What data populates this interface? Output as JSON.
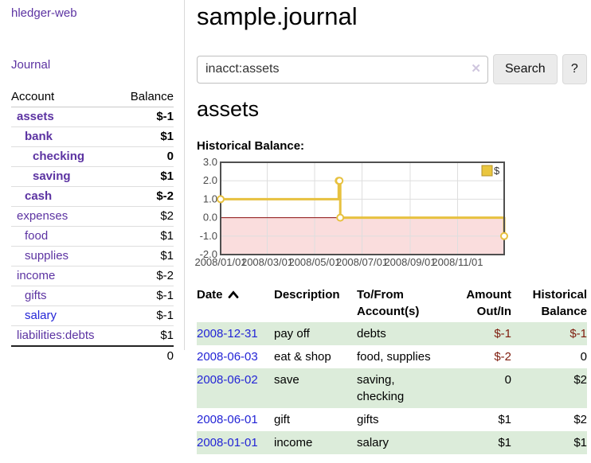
{
  "app_title": "hledger-web",
  "sidebar": {
    "journal_link": "Journal",
    "accounts": {
      "col_account": "Account",
      "col_balance": "Balance",
      "rows": [
        {
          "name": "assets",
          "balance": "$-1",
          "level": 1,
          "current": true
        },
        {
          "name": "bank",
          "balance": "$1",
          "level": 2,
          "current": true
        },
        {
          "name": "checking",
          "balance": "0",
          "level": 3,
          "current": true
        },
        {
          "name": "saving",
          "balance": "$1",
          "level": 3,
          "current": true
        },
        {
          "name": "cash",
          "balance": "$-2",
          "level": 2,
          "current": true
        },
        {
          "name": "expenses",
          "balance": "$2",
          "level": 1,
          "current": false
        },
        {
          "name": "food",
          "balance": "$1",
          "level": 2,
          "current": false
        },
        {
          "name": "supplies",
          "balance": "$1",
          "level": 2,
          "current": false
        },
        {
          "name": "income",
          "balance": "$-2",
          "level": 1,
          "current": false
        },
        {
          "name": "gifts",
          "balance": "$-1",
          "level": 2,
          "current": false
        },
        {
          "name": "salary",
          "balance": "$-1",
          "level": 2,
          "current": false,
          "blue": true
        },
        {
          "name": "liabilities:debts",
          "balance": "$1",
          "level": 1,
          "current": false
        }
      ],
      "total": "0"
    }
  },
  "header": {
    "title": "sample.journal"
  },
  "search": {
    "value": "inacct:assets",
    "button": "Search",
    "help_button": "?"
  },
  "icons": {
    "clear_search": "✕",
    "date_sort": "chevron-up"
  },
  "account_page": {
    "heading": "assets",
    "chart_label": "Historical Balance:"
  },
  "chart_data": {
    "type": "line",
    "title": "Historical Balance:",
    "ylim": [
      -2,
      3
    ],
    "y_ticks": [
      "3.0",
      "2.0",
      "1.0",
      "0.0",
      "-1.0",
      "-2.0"
    ],
    "x_range": [
      "2008-01-01",
      "2008-12-31"
    ],
    "x_ticks": [
      {
        "label": "2008/01/01",
        "date": "2008-01-01"
      },
      {
        "label": "2008/03/01",
        "date": "2008-03-01"
      },
      {
        "label": "2008/05/01",
        "date": "2008-05-01"
      },
      {
        "label": "2008/07/01",
        "date": "2008-07-01"
      },
      {
        "label": "2008/09/01",
        "date": "2008-09-01"
      },
      {
        "label": "2008/11/01",
        "date": "2008-11-01"
      }
    ],
    "series": [
      {
        "name": "$",
        "color": "#e7c13f",
        "points": [
          [
            "2008-01-01",
            1
          ],
          [
            "2008-06-01",
            2
          ],
          [
            "2008-06-02",
            2
          ],
          [
            "2008-06-03",
            0
          ],
          [
            "2008-12-31",
            -1
          ]
        ]
      }
    ],
    "legend": [
      {
        "label": "$",
        "color": "#eac63e"
      }
    ],
    "legend_position": "top-right",
    "grid": true,
    "negative_region_color": "#fadddd",
    "zero_line_color": "#8e1010",
    "grid_color": "#dedede",
    "border_color": "#4f4f4f",
    "axis_text_color": "#4a4a4a"
  },
  "register": {
    "headers": {
      "date": "Date",
      "description": "Description",
      "accounts": "To/From Account(s)",
      "amount": "Amount Out/In",
      "balance": "Historical Balance"
    },
    "rows": [
      {
        "date": "2008-12-31",
        "description": "pay off",
        "accounts": "debts",
        "amount": "$-1",
        "balance": "$-1"
      },
      {
        "date": "2008-06-03",
        "description": "eat & shop",
        "accounts": "food, supplies",
        "amount": "$-2",
        "balance": "0"
      },
      {
        "date": "2008-06-02",
        "description": "save",
        "accounts": "saving, checking",
        "amount": "0",
        "balance": "$2"
      },
      {
        "date": "2008-06-01",
        "description": "gift",
        "accounts": "gifts",
        "amount": "$1",
        "balance": "$2"
      },
      {
        "date": "2008-01-01",
        "description": "income",
        "accounts": "salary",
        "amount": "$1",
        "balance": "$1"
      }
    ]
  },
  "colors": {
    "link_purple": "#5c33a2",
    "link_blue": "#2324d6",
    "negative": "#7e1c0d",
    "negative_dim": "#c08077",
    "row_green": "#dcecda"
  }
}
